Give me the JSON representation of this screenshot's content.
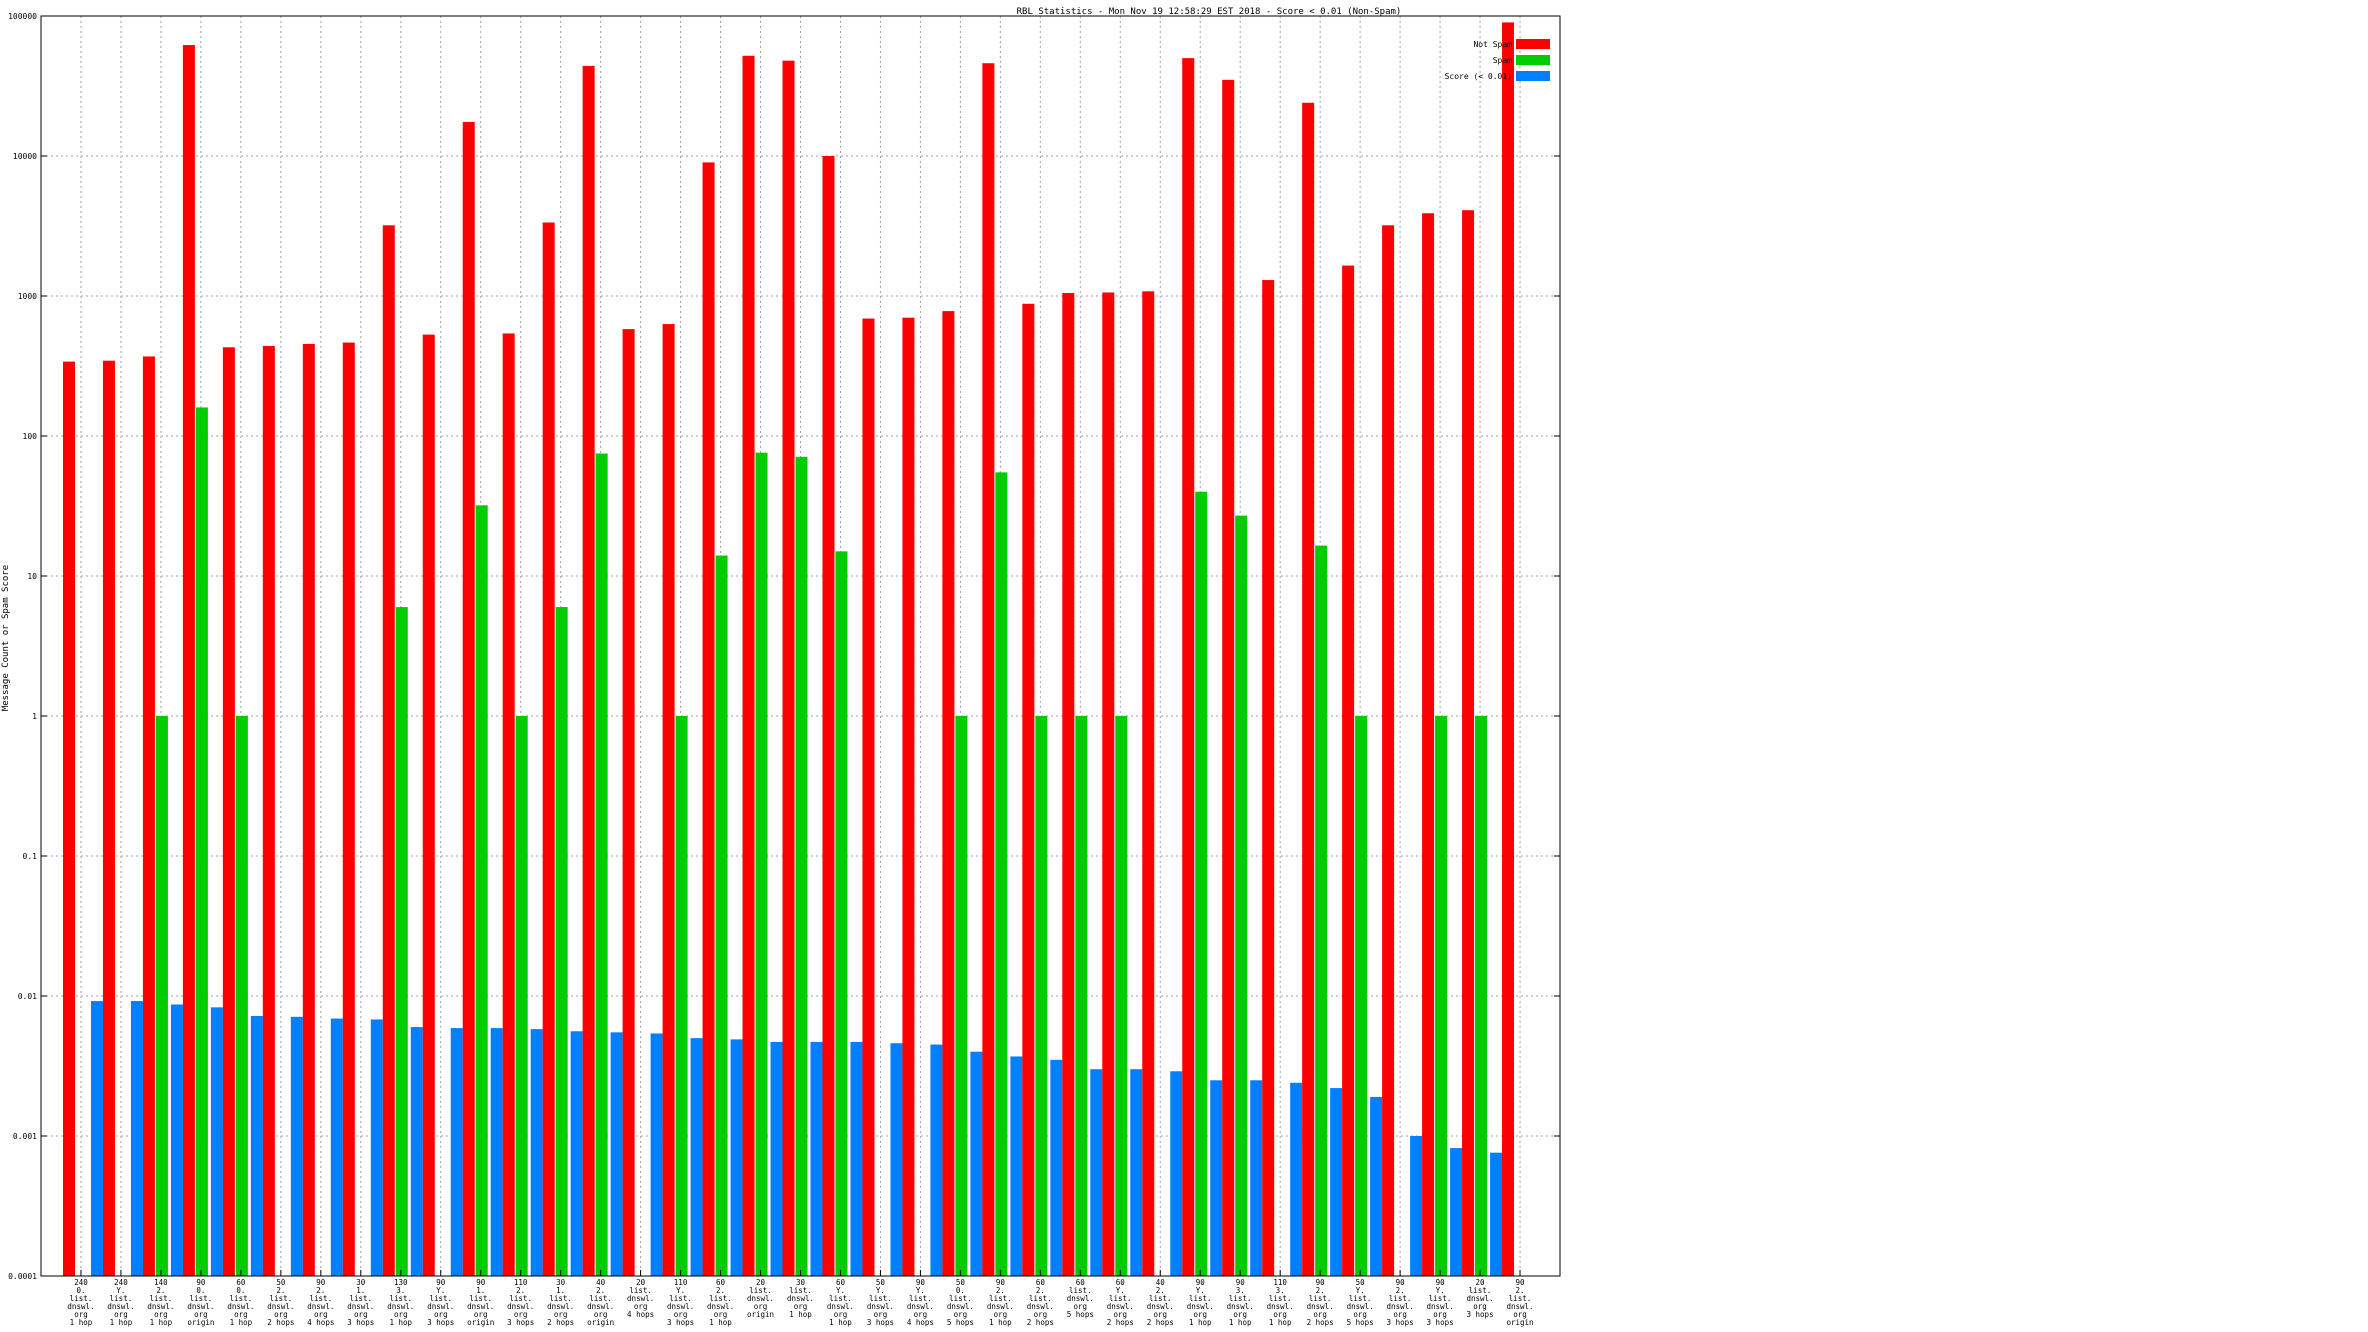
{
  "chart_data": {
    "type": "bar",
    "title": "RBL Statistics - Mon Nov 19 12:58:29 EST 2018 - Score < 0.01 (Non-Spam)",
    "ylabel": "Message Count or Spam Score",
    "xlabel": "",
    "yscale": "log",
    "ylim": [
      0.0001,
      100000
    ],
    "grid": true,
    "legend_position": "top-right",
    "yticks": [
      "0.0001",
      "0.001",
      "0.01",
      "0.1",
      "1",
      "10",
      "100",
      "1000",
      "10000",
      "100000"
    ],
    "categories": [
      [
        "240",
        "0.",
        "list.",
        "dnswl.",
        "org",
        "1 hop"
      ],
      [
        "240",
        "Y.",
        "list.",
        "dnswl.",
        "org",
        "1 hop"
      ],
      [
        "140",
        "2.",
        "list.",
        "dnswl.",
        "org",
        "1 hop"
      ],
      [
        "90",
        "0.",
        "list.",
        "dnswl.",
        "org",
        "origin"
      ],
      [
        "60",
        "0.",
        "list.",
        "dnswl.",
        "org",
        "1 hop"
      ],
      [
        "50",
        "2.",
        "list.",
        "dnswl.",
        "org",
        "2 hops"
      ],
      [
        "90",
        "2.",
        "list.",
        "dnswl.",
        "org",
        "4 hops"
      ],
      [
        "30",
        "1.",
        "list.",
        "dnswl.",
        "org",
        "3 hops"
      ],
      [
        "130",
        "3.",
        "list.",
        "dnswl.",
        "org",
        "1 hop"
      ],
      [
        "90",
        "Y.",
        "list.",
        "dnswl.",
        "org",
        "3 hops"
      ],
      [
        "90",
        "1.",
        "list.",
        "dnswl.",
        "org",
        "origin"
      ],
      [
        "110",
        "2.",
        "list.",
        "dnswl.",
        "org",
        "3 hops"
      ],
      [
        "30",
        "1.",
        "list.",
        "dnswl.",
        "org",
        "2 hops"
      ],
      [
        "40",
        "2.",
        "list.",
        "dnswl.",
        "org",
        "origin"
      ],
      [
        "20",
        "list.",
        "dnswl.",
        "org",
        "4 hops"
      ],
      [
        "110",
        "Y.",
        "list.",
        "dnswl.",
        "org",
        "3 hops"
      ],
      [
        "60",
        "2.",
        "list.",
        "dnswl.",
        "org",
        "1 hop"
      ],
      [
        "20",
        "list.",
        "dnswl.",
        "org",
        "origin"
      ],
      [
        "30",
        "list.",
        "dnswl.",
        "org",
        "1 hop"
      ],
      [
        "60",
        "Y.",
        "list.",
        "dnswl.",
        "org",
        "1 hop"
      ],
      [
        "50",
        "Y.",
        "list.",
        "dnswl.",
        "org",
        "3 hops"
      ],
      [
        "90",
        "Y.",
        "list.",
        "dnswl.",
        "org",
        "4 hops"
      ],
      [
        "50",
        "0.",
        "list.",
        "dnswl.",
        "org",
        "5 hops"
      ],
      [
        "90",
        "2.",
        "list.",
        "dnswl.",
        "org",
        "1 hop"
      ],
      [
        "60",
        "2.",
        "list.",
        "dnswl.",
        "org",
        "2 hops"
      ],
      [
        "60",
        "list.",
        "dnswl.",
        "org",
        "5 hops"
      ],
      [
        "60",
        "Y.",
        "list.",
        "dnswl.",
        "org",
        "2 hops"
      ],
      [
        "40",
        "2.",
        "list.",
        "dnswl.",
        "org",
        "2 hops"
      ],
      [
        "90",
        "Y.",
        "list.",
        "dnswl.",
        "org",
        "1 hop"
      ],
      [
        "90",
        "3.",
        "list.",
        "dnswl.",
        "org",
        "1 hop"
      ],
      [
        "110",
        "3.",
        "list.",
        "dnswl.",
        "org",
        "1 hop"
      ],
      [
        "90",
        "2.",
        "list.",
        "dnswl.",
        "org",
        "2 hops"
      ],
      [
        "50",
        "Y.",
        "list.",
        "dnswl.",
        "org",
        "5 hops"
      ],
      [
        "90",
        "2.",
        "list.",
        "dnswl.",
        "org",
        "3 hops"
      ],
      [
        "90",
        "Y.",
        "list.",
        "dnswl.",
        "org",
        "3 hops"
      ],
      [
        "20",
        "list.",
        "dnswl.",
        "org",
        "3 hops"
      ],
      [
        "90",
        "2.",
        "list.",
        "dnswl.",
        "org",
        "origin"
      ]
    ],
    "series": [
      {
        "name": "Not Spam",
        "color": "#ff0000",
        "values": [
          340,
          345,
          370,
          62000,
          430,
          440,
          455,
          465,
          3200,
          530,
          17500,
          540,
          3350,
          44000,
          580,
          630,
          9000,
          52000,
          48000,
          10000,
          690,
          700,
          780,
          46000,
          880,
          1050,
          1060,
          1080,
          50000,
          35000,
          1300,
          24000,
          1650,
          3200,
          3900,
          4100,
          90000
        ]
      },
      {
        "name": "Spam",
        "color": "#00cc00",
        "values": [
          null,
          null,
          1,
          160,
          1,
          null,
          null,
          null,
          6,
          null,
          32,
          1,
          6,
          75,
          null,
          1,
          14,
          76,
          71,
          15,
          null,
          null,
          1,
          55,
          1,
          1,
          1,
          null,
          40,
          27,
          null,
          16.5,
          1,
          null,
          1,
          1,
          null
        ]
      },
      {
        "name": "Score (< 0.01)",
        "color": "#0080ff",
        "values": [
          0.0092,
          0.0092,
          0.0087,
          0.0083,
          0.0072,
          0.0071,
          0.0069,
          0.0068,
          0.006,
          0.0059,
          0.0059,
          0.0058,
          0.0056,
          0.0055,
          0.0054,
          0.005,
          0.0049,
          0.0047,
          0.0047,
          0.0047,
          0.0046,
          0.0045,
          0.004,
          0.0037,
          0.0035,
          0.003,
          0.003,
          0.0029,
          0.0025,
          0.0025,
          0.0024,
          0.0022,
          0.0019,
          0.001,
          0.00082,
          0.00076,
          null
        ]
      }
    ]
  }
}
